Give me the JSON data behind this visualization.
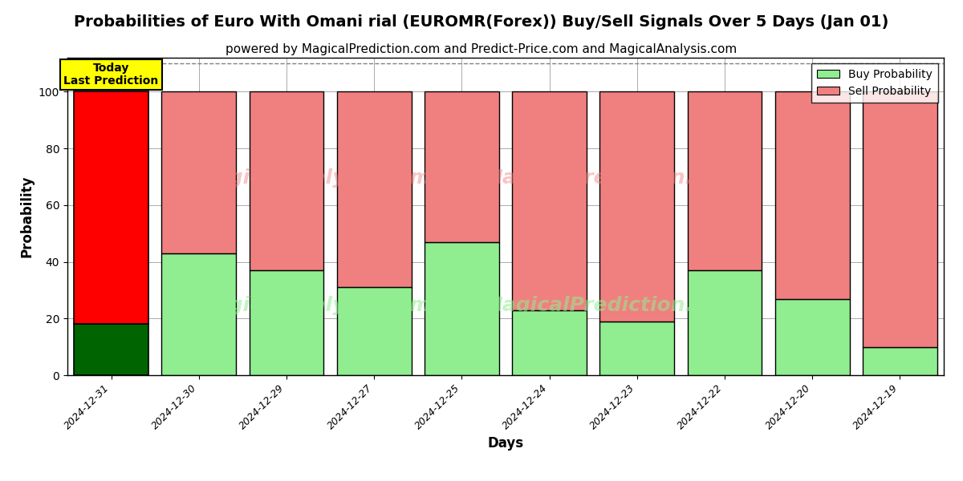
{
  "title": "Probabilities of Euro With Omani rial (EUROMR(Forex)) Buy/Sell Signals Over 5 Days (Jan 01)",
  "subtitle": "powered by MagicalPrediction.com and Predict-Price.com and MagicalAnalysis.com",
  "xlabel": "Days",
  "ylabel": "Probability",
  "categories": [
    "2024-12-31",
    "2024-12-30",
    "2024-12-29",
    "2024-12-27",
    "2024-12-25",
    "2024-12-24",
    "2024-12-23",
    "2024-12-22",
    "2024-12-20",
    "2024-12-19"
  ],
  "buy_values": [
    18,
    43,
    37,
    31,
    47,
    23,
    19,
    37,
    27,
    10
  ],
  "sell_values": [
    82,
    57,
    63,
    69,
    53,
    77,
    81,
    63,
    73,
    90
  ],
  "today_buy_color": "#006400",
  "today_sell_color": "#FF0000",
  "buy_color": "#90EE90",
  "sell_color": "#F08080",
  "today_label_bg": "#FFFF00",
  "watermark_line1": "MagicalAnalysis.com",
  "watermark_line2": "MagicalPrediction.com",
  "watermark_line3": "MagicalAnalysis.com",
  "watermark_line4": "MagicalPrediction.com",
  "ylim": [
    0,
    112
  ],
  "yticks": [
    0,
    20,
    40,
    60,
    80,
    100
  ],
  "dashed_line_y": 110,
  "background_color": "#FFFFFF",
  "grid_color": "#AAAAAA",
  "title_fontsize": 14,
  "subtitle_fontsize": 11,
  "bar_width": 0.85
}
